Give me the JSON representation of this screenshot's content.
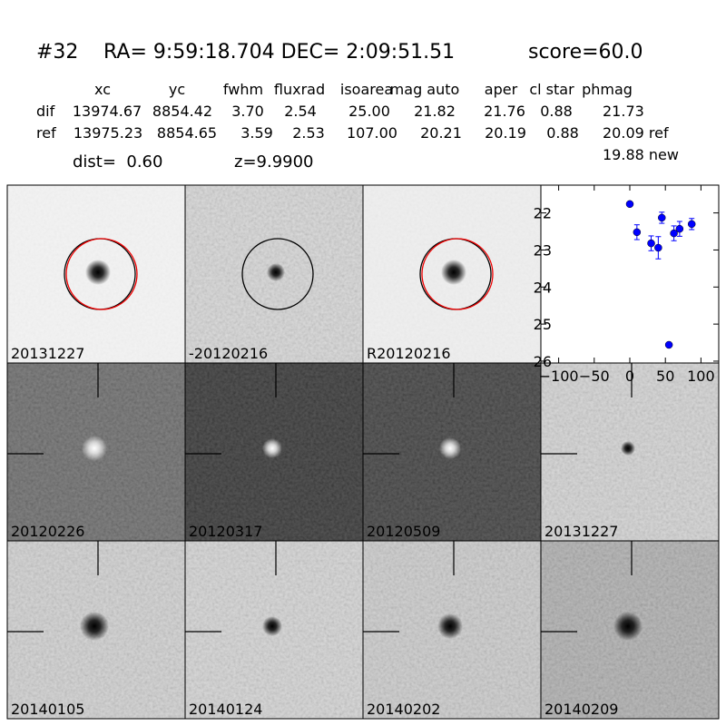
{
  "header": {
    "id": "#32",
    "coords": "RA= 9:59:18.704 DEC= 2:09:51.51",
    "score": "score=60.0"
  },
  "table": {
    "columns": [
      "xc",
      "yc",
      "fwhm",
      "fluxrad",
      "isoarea",
      "mag auto",
      "aper",
      "cl star",
      "phmag"
    ],
    "rows": [
      [
        "dif",
        "13974.67",
        "8854.42",
        "3.70",
        "2.54",
        "25.00",
        "21.82",
        "21.76",
        "0.88",
        "21.73"
      ],
      [
        "ref",
        "13975.23",
        "8854.65",
        "3.59",
        "2.53",
        "107.00",
        "20.21",
        "20.19",
        "0.88",
        "20.09 ref"
      ]
    ],
    "note": "19.88 new"
  },
  "dist": "dist=  0.60",
  "z": "z=9.9900",
  "stamps": [
    {
      "label": "20131227"
    },
    {
      "label": "-20120216"
    },
    {
      "label": "R20120216"
    },
    {
      "label": "20120226"
    },
    {
      "label": "20120317"
    },
    {
      "label": "20120509"
    },
    {
      "label": "20131227",
      "color": "#ff0000"
    },
    {
      "label": "20140105"
    },
    {
      "label": "20140124"
    },
    {
      "label": "20140202"
    },
    {
      "label": "20140209"
    }
  ],
  "chart_data": {
    "type": "scatter",
    "color": "#0000ff",
    "y_inverted": true,
    "x": [
      0,
      10,
      30,
      40,
      45,
      55,
      62,
      70,
      87
    ],
    "values": [
      21.76,
      22.52,
      22.82,
      22.94,
      22.13,
      25.56,
      22.55,
      22.43,
      22.3
    ],
    "errors": [
      0.05,
      0.2,
      0.2,
      0.3,
      0.15,
      0.05,
      0.2,
      0.2,
      0.15
    ],
    "xlim": [
      -125,
      125
    ],
    "ylim": [
      21.25,
      26.05
    ],
    "xticks": [
      {
        "value": -100,
        "label": "−100"
      },
      {
        "value": -50,
        "label": "−50"
      },
      0,
      50,
      100
    ],
    "yticks": [
      22,
      23,
      24,
      25,
      26
    ]
  }
}
